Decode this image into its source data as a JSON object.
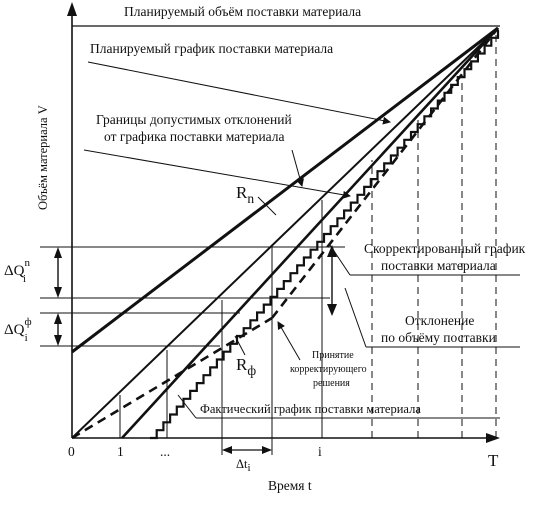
{
  "diagram": {
    "title": "Планируемый объём поставки материала",
    "y_axis_label": "Объём материала V",
    "x_axis_label": "Время  t",
    "origin_label": "0",
    "x_tick_1": "1",
    "x_tick_dots": "...",
    "x_tick_i": "i",
    "x_end_label": "T",
    "dt_label": "Δt",
    "dt_sub": "i",
    "planned_schedule": "Планируемый график поставки материала",
    "bounds_line1": "Границы допустимых отклонений",
    "bounds_line2": "от графика поставки материала",
    "rn_main": "R",
    "rn_sub": "n",
    "rf_main": "R",
    "rf_sub": "ф",
    "corrected_line1": "Скорректированный график",
    "corrected_line2": "поставки материала",
    "deviation_line1": "Отклонение",
    "deviation_line2": "по объёму поставки",
    "decision_line1": "Принятие",
    "decision_line2": "корректирующего",
    "decision_line3": "решения",
    "actual_schedule": "Фактический график поставки материала",
    "dq_n_main": "ΔQ",
    "dq_n_sup": "n",
    "dq_n_sub": "i",
    "dq_f_main": "ΔQ",
    "dq_f_sup": "ф",
    "dq_f_sub": "i"
  }
}
